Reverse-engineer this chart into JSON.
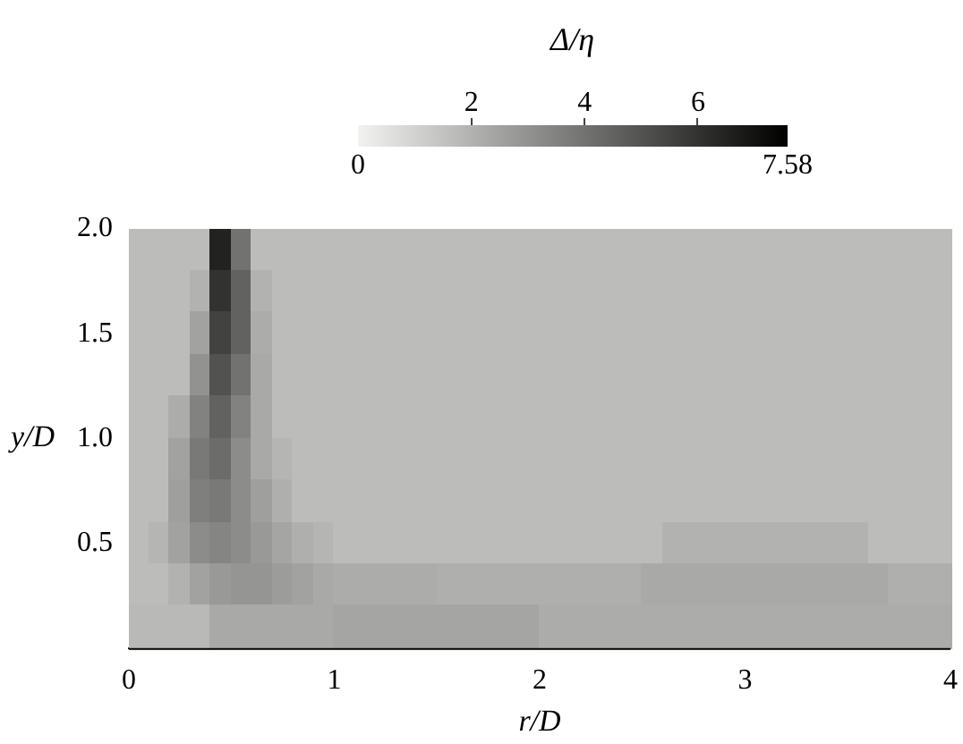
{
  "chart_data": {
    "type": "heatmap",
    "xlabel": "r/D",
    "ylabel": "y/D",
    "clabel": "Δ/η",
    "x": [
      0.05,
      0.15,
      0.25,
      0.35,
      0.45,
      0.55,
      0.65,
      0.75,
      0.85,
      0.95,
      1.05,
      1.15,
      1.25,
      1.35,
      1.45,
      1.55,
      1.65,
      1.75,
      1.85,
      1.95,
      2.05,
      2.15,
      2.25,
      2.35,
      2.45,
      2.55,
      2.65,
      2.75,
      2.85,
      2.95,
      3.05,
      3.15,
      3.25,
      3.35,
      3.45,
      3.55,
      3.65,
      3.75,
      3.85,
      3.95
    ],
    "y": [
      1.9,
      1.7,
      1.5,
      1.3,
      1.1,
      0.9,
      0.7,
      0.5,
      0.3,
      0.1
    ],
    "cells": [
      [
        1.7,
        1.7,
        1.7,
        1.7,
        6.5,
        4.0,
        1.7,
        1.7,
        1.7,
        1.7,
        1.7,
        1.7,
        1.7,
        1.7,
        1.7,
        1.7,
        1.7,
        1.7,
        1.7,
        1.7,
        1.7,
        1.7,
        1.7,
        1.7,
        1.7,
        1.7,
        1.7,
        1.7,
        1.7,
        1.7,
        1.7,
        1.7,
        1.7,
        1.7,
        1.7,
        1.7,
        1.7,
        1.7,
        1.7,
        1.7
      ],
      [
        1.7,
        1.7,
        1.7,
        2.0,
        6.0,
        4.5,
        2.0,
        1.7,
        1.7,
        1.7,
        1.7,
        1.7,
        1.7,
        1.7,
        1.7,
        1.7,
        1.7,
        1.7,
        1.7,
        1.7,
        1.7,
        1.7,
        1.7,
        1.7,
        1.7,
        1.7,
        1.7,
        1.7,
        1.7,
        1.7,
        1.7,
        1.7,
        1.7,
        1.7,
        1.7,
        1.7,
        1.7,
        1.7,
        1.7,
        1.7
      ],
      [
        1.7,
        1.7,
        1.7,
        2.5,
        5.5,
        4.5,
        2.2,
        1.7,
        1.7,
        1.7,
        1.7,
        1.7,
        1.7,
        1.7,
        1.7,
        1.7,
        1.7,
        1.7,
        1.7,
        1.7,
        1.7,
        1.7,
        1.7,
        1.7,
        1.7,
        1.7,
        1.7,
        1.7,
        1.7,
        1.7,
        1.7,
        1.7,
        1.7,
        1.7,
        1.7,
        1.7,
        1.7,
        1.7,
        1.7,
        1.7
      ],
      [
        1.7,
        1.7,
        1.7,
        3.0,
        5.0,
        4.0,
        2.3,
        1.7,
        1.7,
        1.7,
        1.7,
        1.7,
        1.7,
        1.7,
        1.7,
        1.7,
        1.7,
        1.7,
        1.7,
        1.7,
        1.7,
        1.7,
        1.7,
        1.7,
        1.7,
        1.7,
        1.7,
        1.7,
        1.7,
        1.7,
        1.7,
        1.7,
        1.7,
        1.7,
        1.7,
        1.7,
        1.7,
        1.7,
        1.7,
        1.7
      ],
      [
        1.7,
        1.7,
        2.2,
        3.5,
        4.5,
        3.5,
        2.3,
        1.7,
        1.7,
        1.7,
        1.7,
        1.7,
        1.7,
        1.7,
        1.7,
        1.7,
        1.7,
        1.7,
        1.7,
        1.7,
        1.7,
        1.7,
        1.7,
        1.7,
        1.7,
        1.7,
        1.7,
        1.7,
        1.7,
        1.7,
        1.7,
        1.7,
        1.7,
        1.7,
        1.7,
        1.7,
        1.7,
        1.7,
        1.7,
        1.7
      ],
      [
        1.7,
        1.7,
        2.5,
        3.8,
        4.2,
        3.2,
        2.3,
        1.9,
        1.7,
        1.7,
        1.7,
        1.7,
        1.7,
        1.7,
        1.7,
        1.7,
        1.7,
        1.7,
        1.7,
        1.7,
        1.7,
        1.7,
        1.7,
        1.7,
        1.7,
        1.7,
        1.7,
        1.7,
        1.7,
        1.7,
        1.7,
        1.7,
        1.7,
        1.7,
        1.7,
        1.7,
        1.7,
        1.7,
        1.7,
        1.7
      ],
      [
        1.7,
        1.7,
        2.6,
        3.6,
        3.8,
        3.2,
        2.6,
        2.1,
        1.7,
        1.7,
        1.7,
        1.7,
        1.7,
        1.7,
        1.7,
        1.7,
        1.7,
        1.7,
        1.7,
        1.7,
        1.7,
        1.7,
        1.7,
        1.7,
        1.7,
        1.7,
        1.7,
        1.7,
        1.7,
        1.7,
        1.7,
        1.7,
        1.7,
        1.7,
        1.7,
        1.7,
        1.7,
        1.7,
        1.7,
        1.7
      ],
      [
        1.7,
        1.9,
        2.5,
        3.2,
        3.4,
        3.2,
        2.8,
        2.4,
        2.1,
        1.9,
        1.7,
        1.7,
        1.7,
        1.7,
        1.7,
        1.7,
        1.7,
        1.7,
        1.7,
        1.7,
        1.7,
        1.7,
        1.7,
        1.7,
        1.7,
        1.7,
        2.0,
        2.0,
        2.0,
        2.0,
        2.0,
        2.0,
        2.0,
        2.0,
        2.0,
        2.0,
        1.7,
        1.7,
        1.7,
        1.7
      ],
      [
        1.7,
        1.7,
        2.0,
        2.5,
        2.8,
        2.9,
        2.9,
        2.7,
        2.5,
        2.3,
        2.2,
        2.2,
        2.2,
        2.2,
        2.2,
        2.1,
        2.1,
        2.1,
        2.1,
        2.1,
        2.1,
        2.1,
        2.1,
        2.1,
        2.1,
        2.3,
        2.3,
        2.3,
        2.3,
        2.3,
        2.3,
        2.3,
        2.3,
        2.3,
        2.3,
        2.3,
        2.3,
        2.1,
        2.1,
        2.1
      ],
      [
        1.8,
        1.8,
        1.8,
        1.8,
        2.3,
        2.3,
        2.3,
        2.3,
        2.3,
        2.3,
        2.4,
        2.4,
        2.4,
        2.4,
        2.4,
        2.4,
        2.4,
        2.4,
        2.4,
        2.4,
        2.2,
        2.2,
        2.2,
        2.2,
        2.2,
        2.2,
        2.2,
        2.2,
        2.2,
        2.2,
        2.2,
        2.2,
        2.2,
        2.2,
        2.2,
        2.2,
        2.2,
        2.2,
        2.2,
        2.2
      ]
    ],
    "xlim": [
      0,
      4
    ],
    "xticks": [
      0,
      1,
      2,
      3,
      4
    ],
    "ylim": [
      0,
      2
    ],
    "yticks": [
      0.5,
      {
        "value": 1,
        "label": "1.0"
      },
      1.5,
      {
        "value": 2,
        "label": "2.0"
      }
    ],
    "clim": [
      0,
      7.58
    ],
    "cticks": [
      2,
      4,
      6
    ],
    "annotations": [
      "0",
      "7.58"
    ]
  }
}
